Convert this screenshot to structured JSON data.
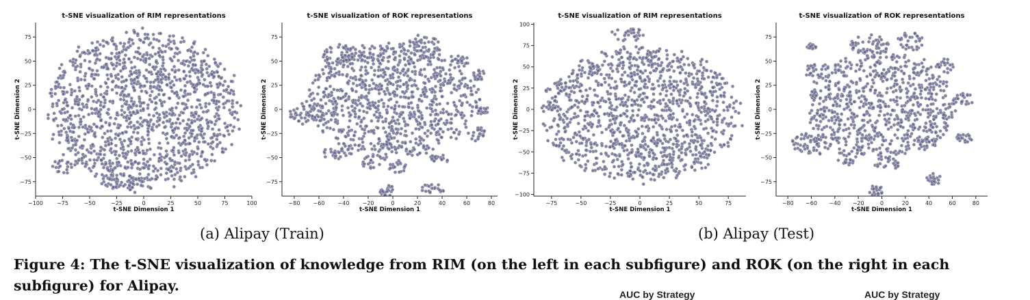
{
  "colors": {
    "point_fill": "#67678a",
    "point_edge": "#d4d4e2",
    "axis": "#222222"
  },
  "chart_data": [
    {
      "type": "scatter",
      "title": "t-SNE visualization of RIM representations",
      "xlabel": "t-SNE Dimension 1",
      "ylabel": "t-SNE Dimension 2",
      "xlim": [
        -100,
        100
      ],
      "ylim": [
        -90,
        90
      ],
      "xticks": [
        -100,
        -75,
        -50,
        -25,
        0,
        25,
        50,
        75,
        100
      ],
      "yticks": [
        -75,
        -50,
        -25,
        0,
        25,
        50,
        75
      ],
      "grid": false,
      "cloud": {
        "shape": "single-dense-blob",
        "center": [
          0,
          0
        ],
        "radius": [
          90,
          82
        ]
      },
      "clusters": [
        {
          "center": [
            -75,
            -60
          ],
          "radius": [
            10,
            8
          ]
        },
        {
          "center": [
            -30,
            -75
          ],
          "radius": [
            12,
            8
          ]
        },
        {
          "center": [
            -10,
            -78
          ],
          "radius": [
            10,
            8
          ]
        }
      ]
    },
    {
      "type": "scatter",
      "title": "t-SNE visualization of ROK representations",
      "xlabel": "t-SNE Dimension 1",
      "ylabel": "t-SNE Dimension 2",
      "xlim": [
        -90,
        85
      ],
      "ylim": [
        -90,
        90
      ],
      "xticks": [
        -80,
        -60,
        -40,
        -20,
        0,
        20,
        40,
        60,
        80
      ],
      "yticks": [
        -75,
        -50,
        -25,
        0,
        25,
        50,
        75
      ],
      "grid": false,
      "cloud": {
        "shape": "central-mass-with-islands",
        "center": [
          0,
          10
        ],
        "radius": [
          70,
          60
        ]
      },
      "clusters": [
        {
          "center": [
            -40,
            55
          ],
          "radius": [
            18,
            12
          ]
        },
        {
          "center": [
            25,
            65
          ],
          "radius": [
            14,
            12
          ]
        },
        {
          "center": [
            55,
            50
          ],
          "radius": [
            7,
            6
          ]
        },
        {
          "center": [
            -70,
            -5
          ],
          "radius": [
            14,
            12
          ]
        },
        {
          "center": [
            -45,
            -45
          ],
          "radius": [
            12,
            8
          ]
        },
        {
          "center": [
            -15,
            -55
          ],
          "radius": [
            10,
            8
          ]
        },
        {
          "center": [
            5,
            -60
          ],
          "radius": [
            8,
            7
          ]
        },
        {
          "center": [
            38,
            -50
          ],
          "radius": [
            8,
            6
          ]
        },
        {
          "center": [
            -5,
            -85
          ],
          "radius": [
            7,
            6
          ]
        },
        {
          "center": [
            32,
            -82
          ],
          "radius": [
            10,
            6
          ]
        },
        {
          "center": [
            70,
            35
          ],
          "radius": [
            6,
            6
          ]
        },
        {
          "center": [
            72,
            0
          ],
          "radius": [
            6,
            6
          ]
        },
        {
          "center": [
            68,
            -25
          ],
          "radius": [
            7,
            8
          ]
        }
      ]
    },
    {
      "type": "scatter",
      "title": "t-SNE visualization of RIM representations",
      "xlabel": "t-SNE Dimension 1",
      "ylabel": "t-SNE Dimension 2",
      "xlim": [
        -90,
        90
      ],
      "ylim": [
        -102,
        102
      ],
      "xticks": [
        -75,
        -50,
        -25,
        0,
        25,
        50,
        75
      ],
      "yticks": [
        -100,
        -75,
        -50,
        -25,
        0,
        25,
        50,
        75,
        100
      ],
      "grid": false,
      "cloud": {
        "shape": "single-dense-blob",
        "center": [
          0,
          -5
        ],
        "radius": [
          85,
          80
        ]
      },
      "clusters": [
        {
          "center": [
            -10,
            88
          ],
          "radius": [
            15,
            8
          ]
        }
      ]
    },
    {
      "type": "scatter",
      "title": "t-SNE visualization of ROK representations",
      "xlabel": "t-SNE Dimension 1",
      "ylabel": "t-SNE Dimension 2",
      "xlim": [
        -90,
        90
      ],
      "ylim": [
        -90,
        90
      ],
      "xticks": [
        -80,
        -60,
        -40,
        -20,
        0,
        20,
        40,
        60,
        80
      ],
      "yticks": [
        -75,
        -50,
        -25,
        0,
        25,
        50,
        75
      ],
      "grid": false,
      "cloud": {
        "shape": "central-mass-with-islands",
        "center": [
          0,
          5
        ],
        "radius": [
          65,
          55
        ]
      },
      "clusters": [
        {
          "center": [
            -10,
            65
          ],
          "radius": [
            18,
            12
          ]
        },
        {
          "center": [
            25,
            70
          ],
          "radius": [
            12,
            10
          ]
        },
        {
          "center": [
            -55,
            40
          ],
          "radius": [
            12,
            8
          ]
        },
        {
          "center": [
            55,
            45
          ],
          "radius": [
            8,
            8
          ]
        },
        {
          "center": [
            -60,
            -35
          ],
          "radius": [
            18,
            12
          ]
        },
        {
          "center": [
            -30,
            -50
          ],
          "radius": [
            10,
            8
          ]
        },
        {
          "center": [
            5,
            -55
          ],
          "radius": [
            12,
            8
          ]
        },
        {
          "center": [
            40,
            -35
          ],
          "radius": [
            8,
            7
          ]
        },
        {
          "center": [
            -5,
            -85
          ],
          "radius": [
            7,
            6
          ]
        },
        {
          "center": [
            45,
            -72
          ],
          "radius": [
            8,
            6
          ]
        },
        {
          "center": [
            70,
            10
          ],
          "radius": [
            8,
            7
          ]
        },
        {
          "center": [
            70,
            -30
          ],
          "radius": [
            7,
            6
          ]
        },
        {
          "center": [
            -60,
            65
          ],
          "radius": [
            4,
            3
          ]
        }
      ]
    }
  ],
  "captions": {
    "sub_a": "(a) Alipay (Train)",
    "sub_b": "(b) Alipay (Test)",
    "figure": "Figure 4: The t-SNE visualization of knowledge from RIM (on the left in each subfigure) and ROK (on the right in each subfigure) for Alipay.",
    "next_left": "AUC by Strategy",
    "next_right": "AUC by Strategy"
  }
}
